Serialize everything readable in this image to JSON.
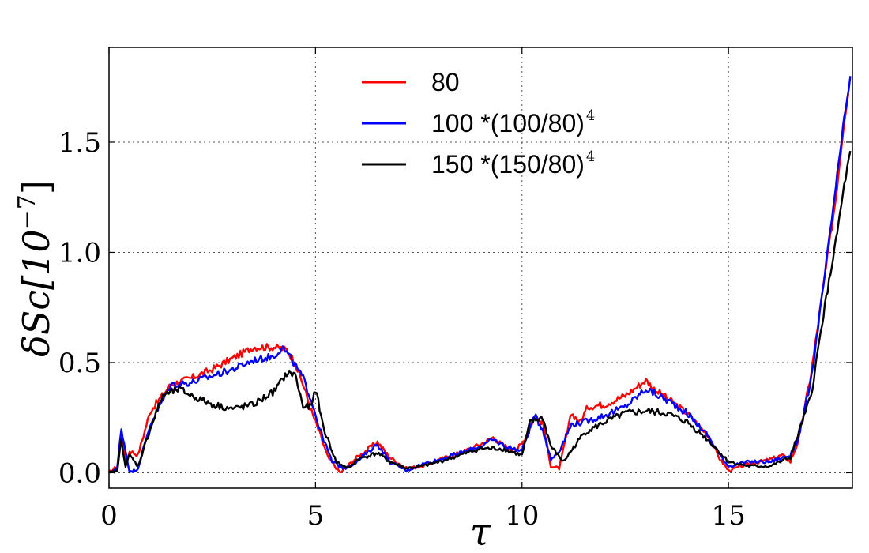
{
  "chart_data": {
    "type": "line",
    "xlabel": "τ",
    "ylabel_base": "δSc[10",
    "ylabel_exp": "−7",
    "ylabel_close": "]",
    "xlim": [
      0,
      18
    ],
    "ylim": [
      -0.07,
      1.93
    ],
    "x_ticks": [
      0,
      5,
      10,
      15
    ],
    "x_tick_labels": [
      "0",
      "5",
      "10",
      "15"
    ],
    "y_ticks": [
      0,
      0.5,
      1.0,
      1.5
    ],
    "y_tick_labels": [
      "0.0",
      "0.5",
      "1.0",
      "1.5"
    ],
    "grid": true,
    "legend_position": "top-center",
    "series": [
      {
        "name": "80",
        "name_sup": "",
        "color": "#ff0000",
        "points": [
          [
            0,
            0.0
          ],
          [
            0.2,
            0.03
          ],
          [
            0.3,
            0.2
          ],
          [
            0.4,
            0.03
          ],
          [
            0.5,
            0.1
          ],
          [
            0.7,
            0.08
          ],
          [
            1.0,
            0.28
          ],
          [
            1.5,
            0.4
          ],
          [
            2.0,
            0.43
          ],
          [
            2.5,
            0.47
          ],
          [
            3.0,
            0.52
          ],
          [
            3.5,
            0.57
          ],
          [
            4.0,
            0.57
          ],
          [
            4.3,
            0.56
          ],
          [
            4.5,
            0.5
          ],
          [
            4.7,
            0.4
          ],
          [
            4.9,
            0.28
          ],
          [
            5.1,
            0.18
          ],
          [
            5.3,
            0.07
          ],
          [
            5.6,
            0.0
          ],
          [
            6.0,
            0.07
          ],
          [
            6.5,
            0.14
          ],
          [
            6.8,
            0.07
          ],
          [
            7.2,
            0.02
          ],
          [
            7.6,
            0.03
          ],
          [
            8.0,
            0.06
          ],
          [
            8.5,
            0.09
          ],
          [
            9.0,
            0.13
          ],
          [
            9.3,
            0.16
          ],
          [
            9.5,
            0.13
          ],
          [
            9.8,
            0.1
          ],
          [
            10.0,
            0.13
          ],
          [
            10.3,
            0.25
          ],
          [
            10.5,
            0.23
          ],
          [
            10.7,
            0.03
          ],
          [
            10.9,
            0.02
          ],
          [
            11.2,
            0.27
          ],
          [
            11.4,
            0.23
          ],
          [
            11.6,
            0.3
          ],
          [
            12.0,
            0.31
          ],
          [
            12.5,
            0.35
          ],
          [
            13.0,
            0.42
          ],
          [
            13.2,
            0.38
          ],
          [
            13.5,
            0.34
          ],
          [
            14.0,
            0.27
          ],
          [
            14.5,
            0.17
          ],
          [
            14.8,
            0.06
          ],
          [
            15.0,
            0.01
          ],
          [
            15.5,
            0.04
          ],
          [
            16.0,
            0.06
          ],
          [
            16.3,
            0.08
          ],
          [
            16.5,
            0.05
          ],
          [
            16.7,
            0.15
          ],
          [
            17.0,
            0.45
          ],
          [
            17.3,
            0.85
          ],
          [
            17.6,
            1.25
          ],
          [
            17.8,
            1.6
          ],
          [
            17.9,
            1.72
          ]
        ]
      },
      {
        "name": "100 *(100/80)",
        "name_sup": "4",
        "color": "#0000ff",
        "points": [
          [
            0,
            0.0
          ],
          [
            0.2,
            0.02
          ],
          [
            0.3,
            0.2
          ],
          [
            0.5,
            0.0
          ],
          [
            0.7,
            0.02
          ],
          [
            1.0,
            0.22
          ],
          [
            1.5,
            0.4
          ],
          [
            2.0,
            0.41
          ],
          [
            2.5,
            0.44
          ],
          [
            3.0,
            0.47
          ],
          [
            3.5,
            0.51
          ],
          [
            4.0,
            0.53
          ],
          [
            4.2,
            0.57
          ],
          [
            4.4,
            0.52
          ],
          [
            4.7,
            0.43
          ],
          [
            4.9,
            0.33
          ],
          [
            5.1,
            0.2
          ],
          [
            5.4,
            0.05
          ],
          [
            5.7,
            0.02
          ],
          [
            6.0,
            0.05
          ],
          [
            6.3,
            0.1
          ],
          [
            6.5,
            0.13
          ],
          [
            6.8,
            0.05
          ],
          [
            7.2,
            0.01
          ],
          [
            7.6,
            0.04
          ],
          [
            8.0,
            0.06
          ],
          [
            8.5,
            0.09
          ],
          [
            9.0,
            0.12
          ],
          [
            9.3,
            0.15
          ],
          [
            9.6,
            0.12
          ],
          [
            10.0,
            0.1
          ],
          [
            10.3,
            0.26
          ],
          [
            10.5,
            0.2
          ],
          [
            10.7,
            0.06
          ],
          [
            10.9,
            0.1
          ],
          [
            11.2,
            0.22
          ],
          [
            11.5,
            0.23
          ],
          [
            12.0,
            0.26
          ],
          [
            12.5,
            0.3
          ],
          [
            13.0,
            0.38
          ],
          [
            13.3,
            0.35
          ],
          [
            13.6,
            0.32
          ],
          [
            14.0,
            0.27
          ],
          [
            14.5,
            0.17
          ],
          [
            14.8,
            0.08
          ],
          [
            15.0,
            0.03
          ],
          [
            15.5,
            0.05
          ],
          [
            16.0,
            0.05
          ],
          [
            16.5,
            0.08
          ],
          [
            16.7,
            0.16
          ],
          [
            17.0,
            0.42
          ],
          [
            17.3,
            0.85
          ],
          [
            17.6,
            1.3
          ],
          [
            17.8,
            1.6
          ],
          [
            17.95,
            1.8
          ]
        ]
      },
      {
        "name": "150 *(150/80)",
        "name_sup": "4",
        "color": "#000000",
        "points": [
          [
            0,
            0.0
          ],
          [
            0.2,
            0.01
          ],
          [
            0.3,
            0.15
          ],
          [
            0.4,
            0.03
          ],
          [
            0.5,
            0.08
          ],
          [
            0.7,
            0.03
          ],
          [
            1.0,
            0.2
          ],
          [
            1.3,
            0.35
          ],
          [
            1.7,
            0.38
          ],
          [
            2.0,
            0.35
          ],
          [
            2.5,
            0.31
          ],
          [
            3.0,
            0.29
          ],
          [
            3.5,
            0.31
          ],
          [
            4.0,
            0.37
          ],
          [
            4.3,
            0.45
          ],
          [
            4.5,
            0.45
          ],
          [
            4.7,
            0.3
          ],
          [
            4.9,
            0.3
          ],
          [
            5.0,
            0.38
          ],
          [
            5.2,
            0.2
          ],
          [
            5.5,
            0.05
          ],
          [
            5.8,
            0.02
          ],
          [
            6.0,
            0.06
          ],
          [
            6.5,
            0.09
          ],
          [
            6.8,
            0.05
          ],
          [
            7.2,
            0.02
          ],
          [
            7.6,
            0.03
          ],
          [
            8.0,
            0.05
          ],
          [
            8.5,
            0.08
          ],
          [
            9.0,
            0.11
          ],
          [
            9.5,
            0.11
          ],
          [
            10.0,
            0.08
          ],
          [
            10.2,
            0.23
          ],
          [
            10.5,
            0.25
          ],
          [
            10.7,
            0.12
          ],
          [
            11.0,
            0.05
          ],
          [
            11.5,
            0.18
          ],
          [
            12.0,
            0.23
          ],
          [
            12.5,
            0.27
          ],
          [
            13.0,
            0.28
          ],
          [
            13.5,
            0.27
          ],
          [
            14.0,
            0.23
          ],
          [
            14.5,
            0.15
          ],
          [
            15.0,
            0.05
          ],
          [
            15.5,
            0.03
          ],
          [
            16.0,
            0.03
          ],
          [
            16.5,
            0.07
          ],
          [
            17.0,
            0.35
          ],
          [
            17.3,
            0.72
          ],
          [
            17.6,
            1.05
          ],
          [
            17.8,
            1.3
          ],
          [
            17.95,
            1.46
          ]
        ]
      }
    ]
  }
}
